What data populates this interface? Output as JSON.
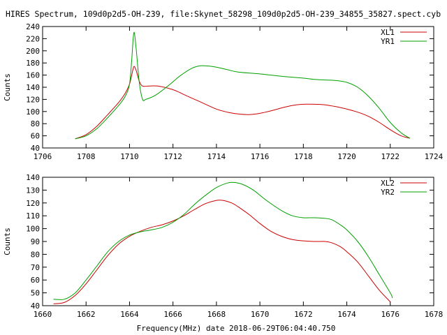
{
  "title": "HIRES Spectrum, 109d0p2d5-OH-239, file:Skynet_58298_109d0p2d5-OH-239_34855_35827.spect.cyb",
  "xlabel_bottom": "Frequency(MHz) date 2018-06-29T06:04:40.750",
  "chart_data": [
    {
      "type": "line",
      "ylabel": "Counts",
      "xlim": [
        1706,
        1724
      ],
      "ylim": [
        40,
        240
      ],
      "xticks": [
        1706,
        1708,
        1710,
        1712,
        1714,
        1716,
        1718,
        1720,
        1722,
        1724
      ],
      "yticks": [
        40,
        60,
        80,
        100,
        120,
        140,
        160,
        180,
        200,
        220,
        240
      ],
      "grid": false,
      "legend": "top-right",
      "series": [
        {
          "name": "XL1",
          "color": "#cc0000",
          "points": [
            [
              1707.5,
              55
            ],
            [
              1708,
              62
            ],
            [
              1708.5,
              76
            ],
            [
              1709,
              95
            ],
            [
              1709.5,
              115
            ],
            [
              1709.8,
              130
            ],
            [
              1710.0,
              145
            ],
            [
              1710.1,
              160
            ],
            [
              1710.2,
              174
            ],
            [
              1710.3,
              168
            ],
            [
              1710.45,
              150
            ],
            [
              1710.6,
              142
            ],
            [
              1710.9,
              142
            ],
            [
              1711.3,
              142
            ],
            [
              1712,
              136
            ],
            [
              1712.5,
              128
            ],
            [
              1713,
              120
            ],
            [
              1713.5,
              112
            ],
            [
              1714,
              104
            ],
            [
              1714.5,
              99
            ],
            [
              1715,
              96
            ],
            [
              1715.5,
              95
            ],
            [
              1716,
              97
            ],
            [
              1716.5,
              101
            ],
            [
              1717,
              106
            ],
            [
              1717.5,
              110
            ],
            [
              1718,
              112
            ],
            [
              1718.5,
              112
            ],
            [
              1719,
              111
            ],
            [
              1719.5,
              108
            ],
            [
              1720,
              104
            ],
            [
              1720.5,
              99
            ],
            [
              1721,
              92
            ],
            [
              1721.5,
              82
            ],
            [
              1722,
              70
            ],
            [
              1722.5,
              60
            ],
            [
              1722.9,
              56
            ]
          ]
        },
        {
          "name": "YR1",
          "color": "#00a000",
          "points": [
            [
              1707.5,
              55
            ],
            [
              1708,
              60
            ],
            [
              1708.5,
              72
            ],
            [
              1709,
              90
            ],
            [
              1709.5,
              110
            ],
            [
              1709.8,
              125
            ],
            [
              1710.0,
              145
            ],
            [
              1710.1,
              185
            ],
            [
              1710.2,
              230
            ],
            [
              1710.3,
              205
            ],
            [
              1710.45,
              148
            ],
            [
              1710.6,
              120
            ],
            [
              1710.75,
              120
            ],
            [
              1711.2,
              127
            ],
            [
              1711.8,
              143
            ],
            [
              1712.3,
              158
            ],
            [
              1712.8,
              170
            ],
            [
              1713.2,
              175
            ],
            [
              1713.6,
              175
            ],
            [
              1714,
              173
            ],
            [
              1714.5,
              169
            ],
            [
              1715,
              165
            ],
            [
              1716,
              162
            ],
            [
              1717,
              158
            ],
            [
              1718,
              155
            ],
            [
              1718.5,
              153
            ],
            [
              1719,
              152
            ],
            [
              1719.5,
              151
            ],
            [
              1720,
              148
            ],
            [
              1720.5,
              140
            ],
            [
              1721,
              125
            ],
            [
              1721.5,
              105
            ],
            [
              1722,
              82
            ],
            [
              1722.5,
              65
            ],
            [
              1722.9,
              56
            ]
          ]
        }
      ]
    },
    {
      "type": "line",
      "ylabel": "Counts",
      "xlim": [
        1660,
        1678
      ],
      "ylim": [
        40,
        140
      ],
      "xticks": [
        1660,
        1662,
        1664,
        1666,
        1668,
        1670,
        1672,
        1674,
        1676,
        1678
      ],
      "yticks": [
        40,
        50,
        60,
        70,
        80,
        90,
        100,
        110,
        120,
        130,
        140
      ],
      "grid": false,
      "legend": "top-right",
      "series": [
        {
          "name": "XL2",
          "color": "#cc0000",
          "points": [
            [
              1660.5,
              41.5
            ],
            [
              1661,
              42.5
            ],
            [
              1661.5,
              48
            ],
            [
              1662,
              57
            ],
            [
              1662.5,
              68
            ],
            [
              1663,
              79
            ],
            [
              1663.5,
              88
            ],
            [
              1664,
              94
            ],
            [
              1664.5,
              98
            ],
            [
              1665,
              101
            ],
            [
              1665.5,
              103
            ],
            [
              1666,
              106
            ],
            [
              1666.5,
              110
            ],
            [
              1667,
              115
            ],
            [
              1667.5,
              119.5
            ],
            [
              1668,
              122
            ],
            [
              1668.3,
              122
            ],
            [
              1668.7,
              120
            ],
            [
              1669,
              117
            ],
            [
              1669.5,
              111
            ],
            [
              1670,
              104
            ],
            [
              1670.5,
              98
            ],
            [
              1671,
              94
            ],
            [
              1671.5,
              91.5
            ],
            [
              1672,
              90.5
            ],
            [
              1672.5,
              90
            ],
            [
              1673,
              90
            ],
            [
              1673.3,
              89
            ],
            [
              1673.7,
              86
            ],
            [
              1674,
              82
            ],
            [
              1674.5,
              74
            ],
            [
              1675,
              63
            ],
            [
              1675.5,
              52
            ],
            [
              1676,
              43
            ]
          ]
        },
        {
          "name": "YR2",
          "color": "#00a000",
          "points": [
            [
              1660.5,
              45
            ],
            [
              1661,
              45
            ],
            [
              1661.5,
              50
            ],
            [
              1662,
              60
            ],
            [
              1662.5,
              71
            ],
            [
              1663,
              82
            ],
            [
              1663.5,
              90
            ],
            [
              1664,
              95
            ],
            [
              1664.5,
              97.5
            ],
            [
              1665,
              99
            ],
            [
              1665.5,
              101
            ],
            [
              1666,
              105
            ],
            [
              1666.5,
              111
            ],
            [
              1667,
              119
            ],
            [
              1667.5,
              126
            ],
            [
              1668,
              132
            ],
            [
              1668.5,
              135.5
            ],
            [
              1668.8,
              136
            ],
            [
              1669.2,
              134.5
            ],
            [
              1669.7,
              130
            ],
            [
              1670.3,
              122
            ],
            [
              1671,
              114
            ],
            [
              1671.5,
              110
            ],
            [
              1672,
              108.5
            ],
            [
              1672.5,
              108.5
            ],
            [
              1673,
              108
            ],
            [
              1673.3,
              107
            ],
            [
              1673.7,
              103
            ],
            [
              1674,
              99
            ],
            [
              1674.5,
              90
            ],
            [
              1675,
              78
            ],
            [
              1675.5,
              64
            ],
            [
              1676,
              50
            ],
            [
              1676.1,
              46
            ]
          ]
        }
      ]
    }
  ]
}
